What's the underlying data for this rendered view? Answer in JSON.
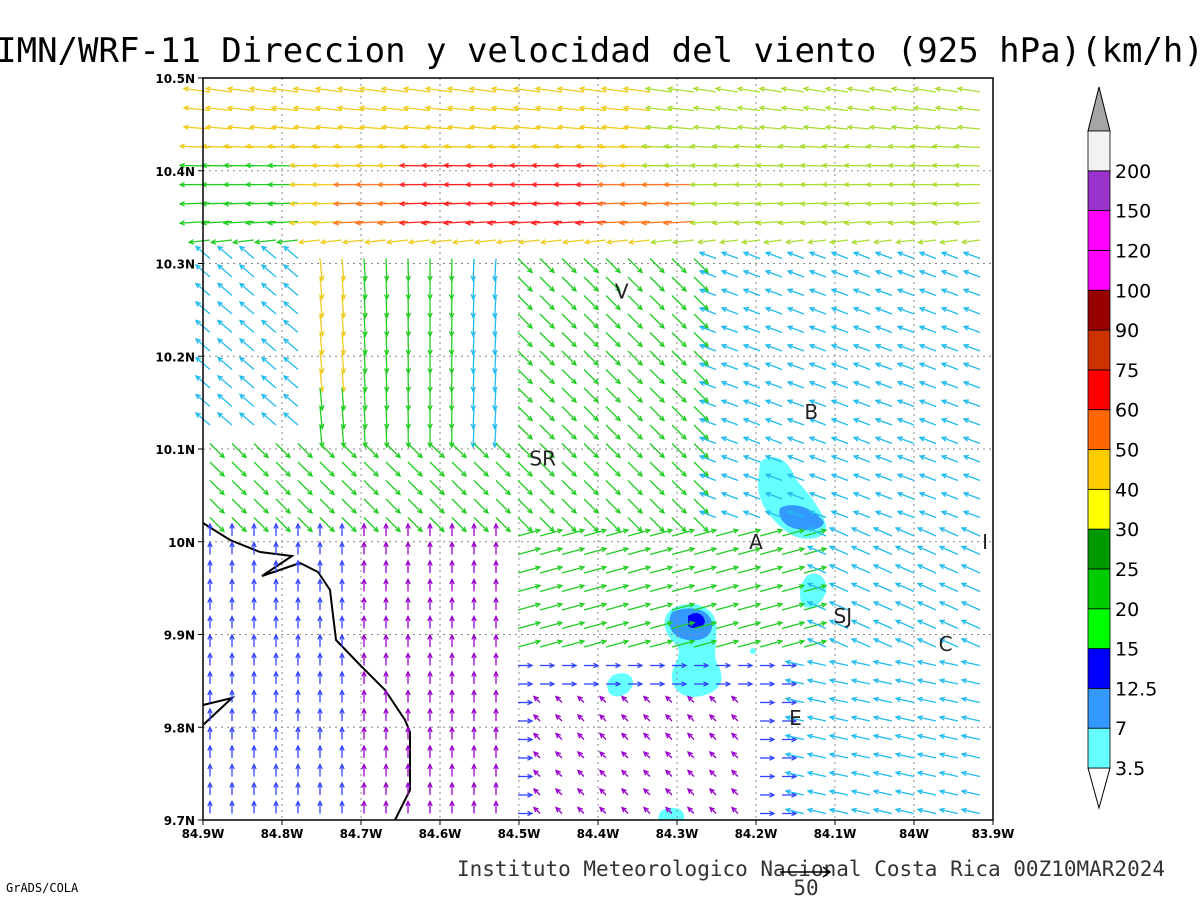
{
  "title": "IMN/WRF-11 Direccion y velocidad del viento (925 hPa)(km/h)",
  "footer": "Instituto Meteorologico Nacional Costa Rica 00Z10MAR2024",
  "software_label": "GrADS/COLA",
  "reference_vector": {
    "value": 50,
    "label": "50"
  },
  "map": {
    "lon_range": [
      -84.9,
      -83.9
    ],
    "lat_range": [
      9.7,
      10.5
    ],
    "x_ticks": [
      "84.9W",
      "84.8W",
      "84.7W",
      "84.6W",
      "84.5W",
      "84.4W",
      "84.3W",
      "84.2W",
      "84.1W",
      "84W",
      "83.9W"
    ],
    "y_ticks": [
      "9.7N",
      "9.8N",
      "9.9N",
      "10N",
      "10.1N",
      "10.2N",
      "10.3N",
      "10.4N",
      "10.5N"
    ],
    "gridlines": "dotted",
    "places": [
      {
        "name": "V",
        "lon": -84.37,
        "lat": 10.27
      },
      {
        "name": "B",
        "lon": -84.13,
        "lat": 10.14
      },
      {
        "name": "SR",
        "lon": -84.47,
        "lat": 10.09
      },
      {
        "name": "A",
        "lon": -84.2,
        "lat": 10.0
      },
      {
        "name": "I",
        "lon": -83.91,
        "lat": 10.0
      },
      {
        "name": "SJ",
        "lon": -84.09,
        "lat": 9.92
      },
      {
        "name": "C",
        "lon": -83.96,
        "lat": 9.89
      },
      {
        "name": "E",
        "lon": -84.15,
        "lat": 9.81
      }
    ]
  },
  "colorbar": {
    "labels": [
      "3.5",
      "7",
      "12.5",
      "15",
      "20",
      "25",
      "30",
      "40",
      "50",
      "60",
      "75",
      "90",
      "100",
      "120",
      "150",
      "200"
    ],
    "colors": [
      "#66ffff",
      "#3399ff",
      "#0000ff",
      "#00ff00",
      "#00cc00",
      "#009900",
      "#ffff00",
      "#ffcc00",
      "#ff6600",
      "#ff0000",
      "#cc3300",
      "#990000",
      "#ff00ff",
      "#ff00ff",
      "#9933cc",
      "#f2f2f2"
    ],
    "top_triangle_color": "#a6a6a6",
    "bottom_triangle_color": "#ffffff"
  },
  "wind_colors": {
    "calm": "#9900cc",
    "light": "#3344ff",
    "moderate": "#22bbee",
    "mid": "#22cc22",
    "strong": "#aadd33",
    "high": "#eecc22",
    "gust": "#ff7722",
    "peak": "#ff2222"
  }
}
